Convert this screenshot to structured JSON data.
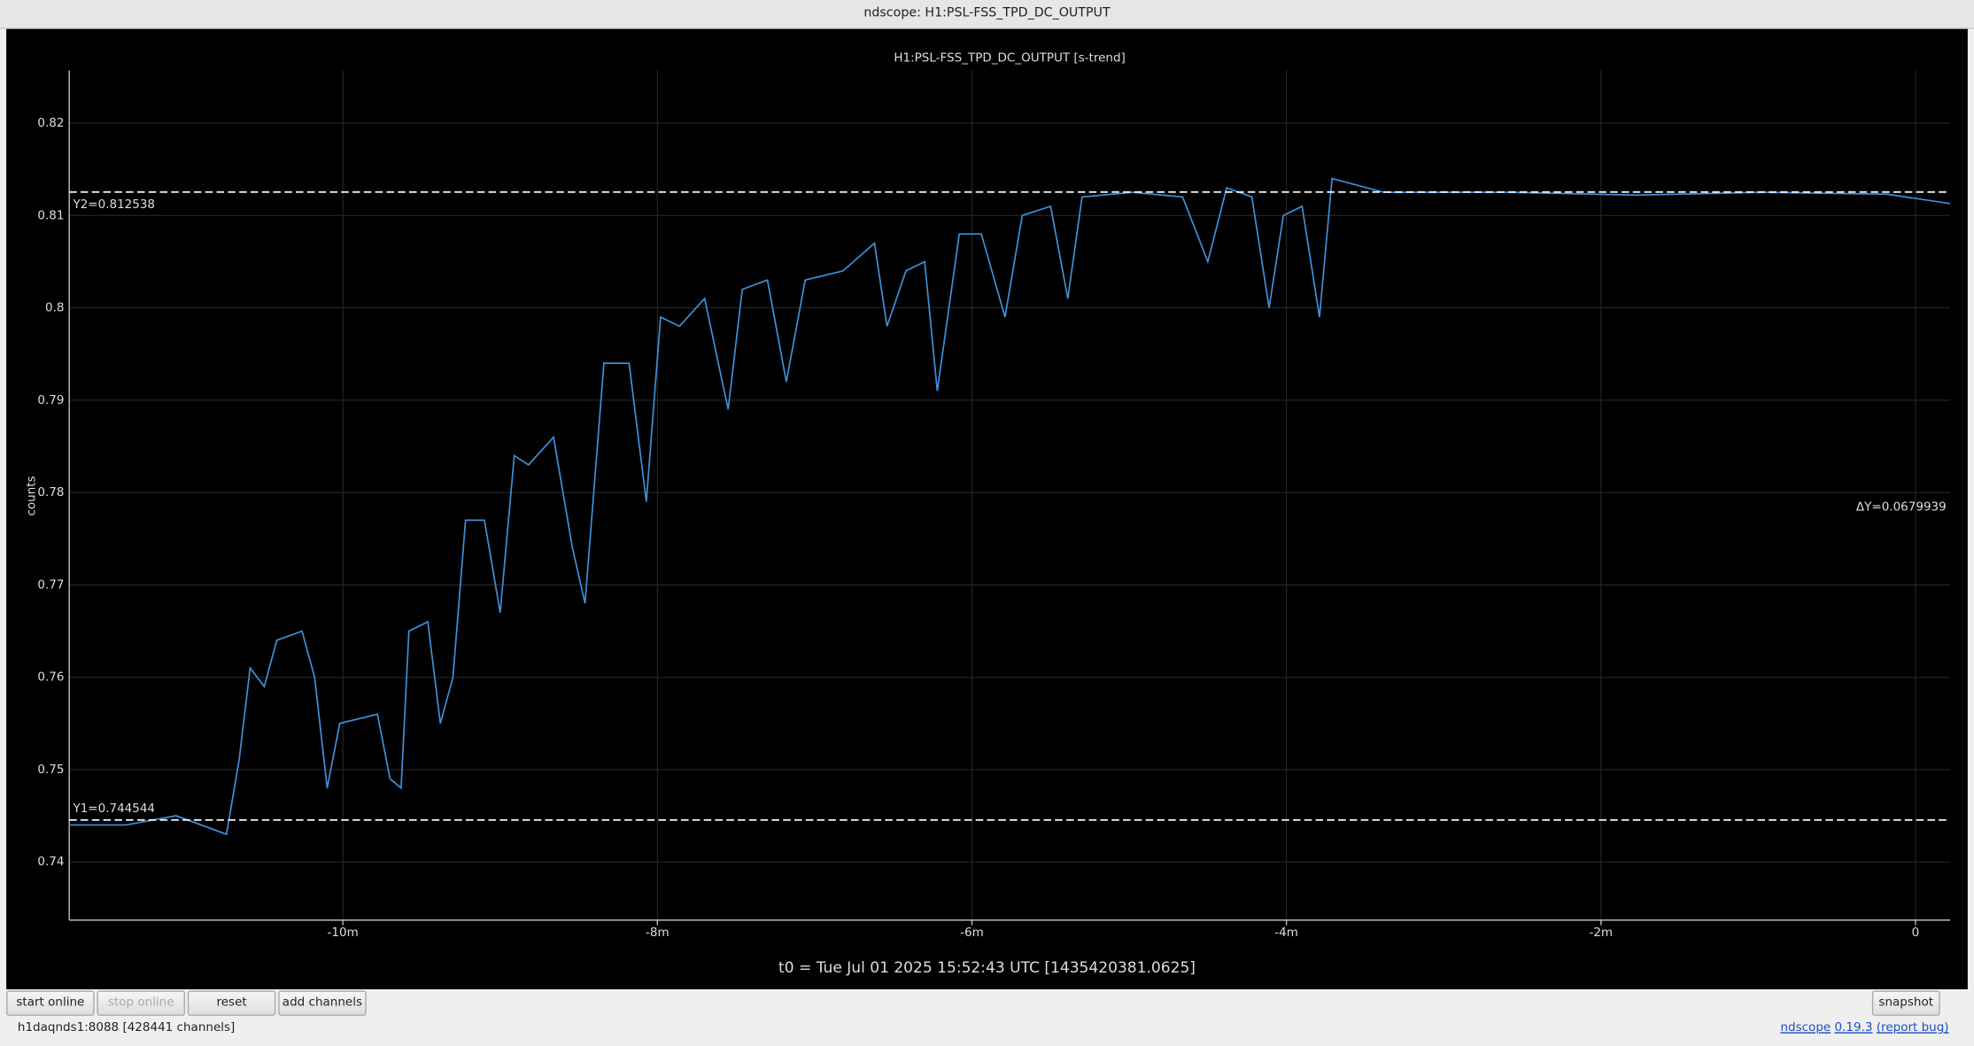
{
  "window": {
    "title": "ndscope: H1:PSL-FSS_TPD_DC_OUTPUT"
  },
  "chart_data": {
    "type": "line",
    "title": "H1:PSL-FSS_TPD_DC_OUTPUT [s-trend]",
    "ylabel": "counts",
    "xlabel": "t0 = Tue Jul 01 2025 15:52:43 UTC [1435420381.0625]",
    "series": [
      {
        "color": "#3f8fd6",
        "x": [
          -11.74,
          -11.38,
          -11.06,
          -10.74,
          -10.66,
          -10.59,
          -10.5,
          -10.42,
          -10.26,
          -10.18,
          -10.1,
          -10.02,
          -9.78,
          -9.7,
          -9.63,
          -9.58,
          -9.46,
          -9.38,
          -9.3,
          -9.22,
          -9.1,
          -9.0,
          -8.91,
          -8.82,
          -8.66,
          -8.54,
          -8.46,
          -8.34,
          -8.18,
          -8.07,
          -7.98,
          -7.86,
          -7.7,
          -7.55,
          -7.46,
          -7.3,
          -7.18,
          -7.06,
          -6.82,
          -6.62,
          -6.54,
          -6.42,
          -6.3,
          -6.22,
          -6.08,
          -5.94,
          -5.79,
          -5.68,
          -5.5,
          -5.39,
          -5.3,
          -4.98,
          -4.66,
          -4.5,
          -4.38,
          -4.22,
          -4.11,
          -4.02,
          -3.9,
          -3.79,
          -3.71,
          -3.38,
          -2.58,
          -1.78,
          -0.98,
          -0.18,
          0.22
        ],
        "values": [
          0.744,
          0.744,
          0.745,
          0.743,
          0.751,
          0.761,
          0.759,
          0.764,
          0.765,
          0.76,
          0.748,
          0.755,
          0.756,
          0.749,
          0.748,
          0.765,
          0.766,
          0.755,
          0.76,
          0.777,
          0.777,
          0.767,
          0.784,
          0.783,
          0.786,
          0.774,
          0.768,
          0.794,
          0.794,
          0.779,
          0.799,
          0.798,
          0.801,
          0.789,
          0.802,
          0.803,
          0.792,
          0.803,
          0.804,
          0.807,
          0.798,
          0.804,
          0.805,
          0.791,
          0.808,
          0.808,
          0.799,
          0.81,
          0.811,
          0.801,
          0.812,
          0.8125,
          0.812,
          0.805,
          0.813,
          0.812,
          0.8,
          0.81,
          0.811,
          0.799,
          0.814,
          0.8125,
          0.8125,
          0.8122,
          0.8125,
          0.8123,
          0.8113
        ]
      }
    ],
    "xlim": [
      -11.74,
      0.22
    ],
    "xticks": [
      {
        "value": -10,
        "label": "-10m"
      },
      {
        "value": -8,
        "label": "-8m"
      },
      {
        "value": -6,
        "label": "-6m"
      },
      {
        "value": -4,
        "label": "-4m"
      },
      {
        "value": -2,
        "label": "-2m"
      },
      0
    ],
    "ylim": [
      0.7337,
      0.8257
    ],
    "yticks": [
      0.74,
      0.75,
      0.76,
      0.77,
      0.78,
      0.79,
      0.8,
      0.81,
      0.82
    ],
    "grid": true,
    "cursors": [
      {
        "value": 0.812538,
        "label": "Y2=0.812538"
      },
      {
        "value": 0.744544,
        "label": "Y1=0.744544"
      }
    ],
    "delta_label": "ΔY=0.0679939"
  },
  "buttons": [
    "start online",
    "stop online",
    "reset",
    "add channels",
    "snapshot"
  ],
  "status": {
    "server": "h1daqnds1:8088  [428441 channels]",
    "app": "ndscope",
    "version": "0.19.3",
    "report": "(report bug)"
  }
}
